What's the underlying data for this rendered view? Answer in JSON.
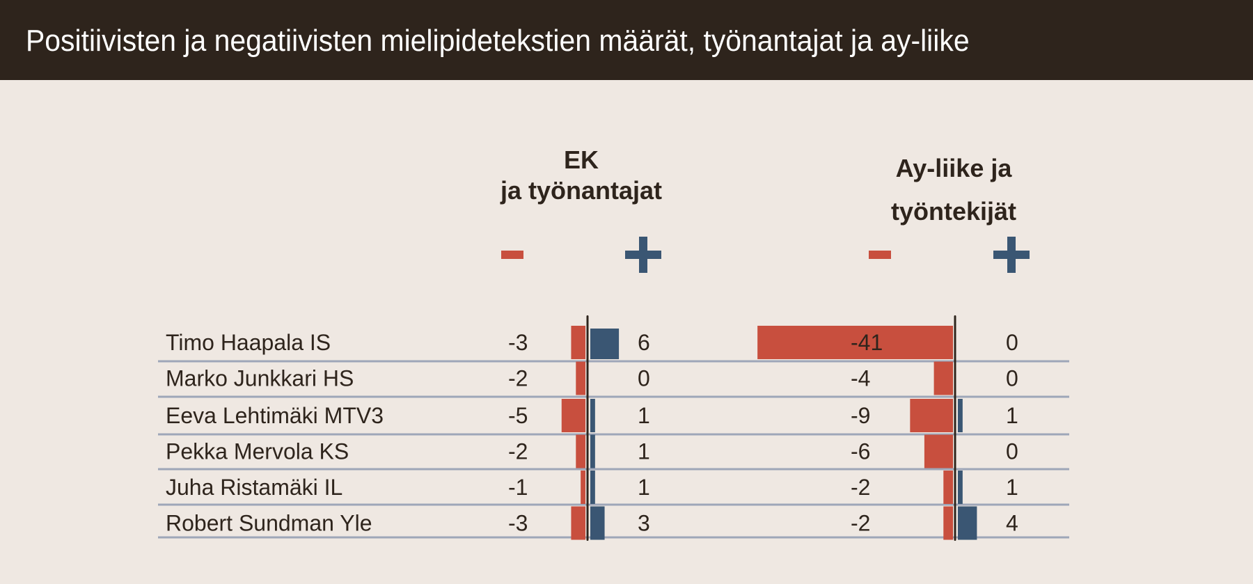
{
  "title": "Positiivisten ja negatiivisten mielipidetekstien määrät, työnantajat ja ay-liike",
  "chart_data": {
    "type": "bar",
    "orientation": "horizontal-diverging",
    "categories": [
      "Timo Haapala IS",
      "Marko Junkkari HS",
      "Eeva Lehtimäki MTV3",
      "Pekka Mervola KS",
      "Juha Ristamäki IL",
      "Robert Sundman Yle"
    ],
    "groups": [
      {
        "title_line1": "EK",
        "title_line2": "ja työnantajat",
        "minus_label": "−",
        "plus_label": "+",
        "negative": [
          -3,
          -2,
          -5,
          -2,
          -1,
          -3
        ],
        "positive": [
          6,
          0,
          1,
          1,
          1,
          3
        ]
      },
      {
        "title_line1": "Ay-liike ja",
        "title_line2": "työntekijät",
        "minus_label": "−",
        "plus_label": "+",
        "negative": [
          -41,
          -4,
          -9,
          -6,
          -2,
          -2
        ],
        "positive": [
          0,
          0,
          1,
          0,
          1,
          4
        ]
      }
    ],
    "colors": {
      "negative": "#c84f3e",
      "positive": "#3a5673",
      "axis": "#2e241c",
      "rule": "#9ea6b8"
    }
  }
}
